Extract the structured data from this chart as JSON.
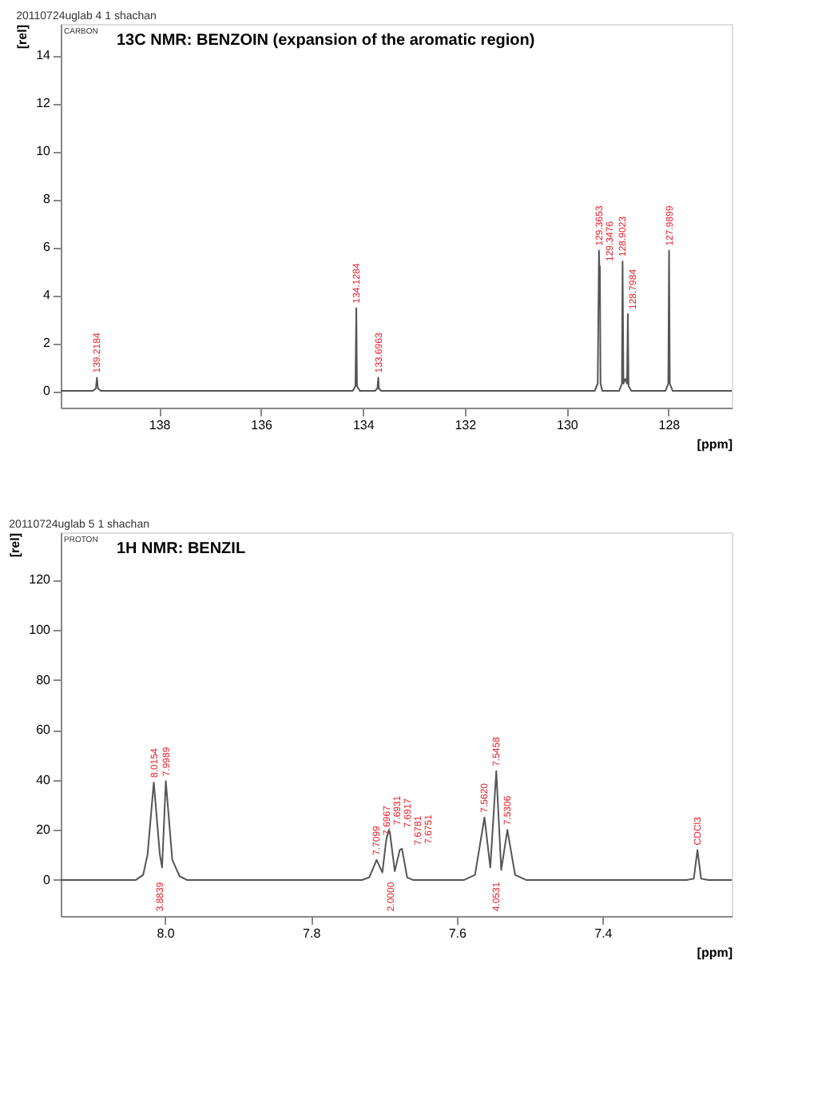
{
  "chart_data": [
    {
      "type": "line",
      "title": "13C NMR: BENZOIN (expansion of the aromatic region)",
      "subtitle": "20110724uglab 4 1 shachan",
      "xlabel": "[ppm]",
      "ylabel": "[rel]",
      "xlim": [
        139.93,
        126.76
      ],
      "ylim": [
        -0.7,
        15.3
      ],
      "xticks": [
        138,
        136,
        134,
        132,
        130,
        128
      ],
      "yticks": [
        0,
        2,
        4,
        6,
        8,
        10,
        12,
        14
      ],
      "grid": false,
      "series": [
        {
          "color": "#555555",
          "x": [
            139.93,
            139.3,
            139.24,
            139.2184,
            139.2,
            139.14,
            134.2,
            134.145,
            134.1284,
            134.115,
            134.06,
            133.76,
            133.715,
            133.6963,
            133.685,
            133.64,
            129.45,
            129.39,
            129.3653,
            129.356,
            129.3476,
            129.335,
            129.3,
            128.97,
            128.915,
            128.9023,
            128.885,
            128.85,
            128.815,
            128.7984,
            128.785,
            128.73,
            128.06,
            128.005,
            127.9899,
            127.975,
            127.92,
            126.76
          ],
          "values": [
            0,
            0,
            0.1,
            0.55,
            0.1,
            0,
            0,
            0.2,
            3.45,
            0.2,
            0,
            0,
            0.1,
            0.55,
            0.1,
            0,
            0,
            0.3,
            5.85,
            5.0,
            5.2,
            0.3,
            0,
            0,
            0.3,
            5.4,
            0.3,
            0.5,
            0.3,
            3.2,
            0.2,
            0,
            0,
            0.3,
            5.85,
            0.3,
            0,
            0
          ]
        }
      ],
      "annotations": [
        "CARBON",
        {
          "text": "139.2184",
          "x": 139.2184,
          "y": 0.55
        },
        {
          "text": "134.1284",
          "x": 134.1284,
          "y": 3.45
        },
        {
          "text": "133.6963",
          "x": 133.6963,
          "y": 0.55
        },
        {
          "text": "129.3653",
          "x": 129.3653,
          "y": 5.85
        },
        {
          "text": "129.3476",
          "x": 129.3476,
          "y": 5.2
        },
        {
          "text": "128.9023",
          "x": 128.9023,
          "y": 5.4
        },
        {
          "text": "128.7984",
          "x": 128.7984,
          "y": 3.2
        },
        {
          "text": "127.9899",
          "x": 127.9899,
          "y": 5.85
        }
      ]
    },
    {
      "type": "line",
      "title": "1H NMR: BENZIL",
      "subtitle": "20110724uglab 5 1 shachan",
      "xlabel": "[ppm]",
      "ylabel": "[rel]",
      "xlim": [
        8.143,
        7.223
      ],
      "ylim": [
        -14.4,
        139
      ],
      "xticks": [
        {
          "value": 8,
          "label": "8.0"
        },
        7.8,
        7.6,
        7.4
      ],
      "yticks": [
        0,
        20,
        40,
        60,
        80,
        100,
        120
      ],
      "grid": false,
      "series": [
        {
          "color": "#555555",
          "x": [
            8.143,
            8.04,
            8.03,
            8.024,
            8.0154,
            8.007,
            8.004,
            7.9989,
            7.99,
            7.98,
            7.97,
            7.73,
            7.72,
            7.7099,
            7.702,
            7.6967,
            7.6931,
            7.6917,
            7.685,
            7.6781,
            7.6751,
            7.668,
            7.66,
            7.59,
            7.575,
            7.562,
            7.554,
            7.5458,
            7.539,
            7.5306,
            7.52,
            7.505,
            7.285,
            7.275,
            7.27,
            7.265,
            7.255,
            7.223
          ],
          "values": [
            0,
            0,
            2,
            10,
            39,
            10,
            5,
            39.5,
            8,
            1.5,
            0,
            0,
            1,
            8,
            3,
            16,
            20,
            19,
            3.5,
            12,
            12.5,
            1,
            0,
            0,
            2,
            25,
            5,
            43.5,
            4,
            20,
            2,
            0,
            0,
            0.5,
            12,
            0.5,
            0,
            0
          ]
        }
      ],
      "annotations": [
        "PROTON",
        {
          "text": "8.0154",
          "x": 8.0154,
          "y": 39
        },
        {
          "text": "7.9989",
          "x": 7.9989,
          "y": 39.5
        },
        {
          "text": "7.7099",
          "x": 7.7099,
          "y": 8
        },
        {
          "text": "7.6967",
          "x": 7.6967,
          "y": 16
        },
        {
          "text": "7.6931",
          "x": 7.6931,
          "y": 20
        },
        {
          "text": "7.6917",
          "x": 7.6917,
          "y": 19
        },
        {
          "text": "7.6781",
          "x": 7.6781,
          "y": 12
        },
        {
          "text": "7.6751",
          "x": 7.6751,
          "y": 12.5
        },
        {
          "text": "7.5620",
          "x": 7.562,
          "y": 25
        },
        {
          "text": "7.5458",
          "x": 7.5458,
          "y": 43.5
        },
        {
          "text": "7.5306",
          "x": 7.5306,
          "y": 20
        },
        {
          "text": "CDCl3",
          "x": 7.27,
          "y": 12
        },
        "3.8839",
        "2.0000",
        "4.0531"
      ]
    }
  ]
}
